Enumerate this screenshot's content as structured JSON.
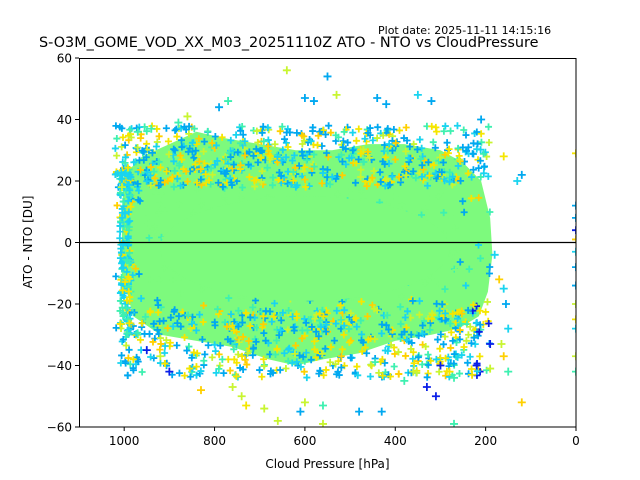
{
  "header": {
    "plot_date": "Plot date: 2025-11-11 14:15:16",
    "title": "S-O3M_GOME_VOD_XX_M03_20251110Z ATO - NTO vs CloudPressure"
  },
  "chart_data": {
    "type": "scatter",
    "title": "S-O3M_GOME_VOD_XX_M03_20251110Z ATO - NTO vs CloudPressure",
    "xlabel": "Cloud Pressure [hPa]",
    "ylabel": "ATO - NTO [DU]",
    "xlim": [
      1100,
      0
    ],
    "ylim": [
      -60,
      60
    ],
    "x_inverted": true,
    "xticks": [
      1000,
      800,
      600,
      400,
      200,
      0
    ],
    "xtick_labels": [
      "1000",
      "800",
      "600",
      "400",
      "200",
      "0"
    ],
    "yticks": [
      60,
      40,
      20,
      0,
      -20,
      -40,
      -60
    ],
    "ytick_labels": [
      "60",
      "40",
      "20",
      "0",
      "−20",
      "−40",
      "−60"
    ],
    "reference_line_y": 0,
    "marker": "+",
    "grid": false,
    "colors": {
      "green": "#7dfa7d",
      "teal": "#3ef0b0",
      "cyan": "#19d4f0",
      "blue": "#00a8f0",
      "dark_blue": "#0a1fe8",
      "yellow": "#f5e600",
      "gold": "#ffd000",
      "lime": "#c8f530"
    },
    "dense_region": {
      "x_range": [
        1000,
        190
      ],
      "y_range": [
        -30,
        30
      ],
      "dominant_color": "green"
    },
    "points": [
      {
        "x": 640,
        "y": 56,
        "c": "lime"
      },
      {
        "x": 550,
        "y": 54,
        "c": "blue"
      },
      {
        "x": 600,
        "y": 47,
        "c": "blue"
      },
      {
        "x": 580,
        "y": 46,
        "c": "blue"
      },
      {
        "x": 530,
        "y": 48,
        "c": "lime"
      },
      {
        "x": 440,
        "y": 47,
        "c": "blue"
      },
      {
        "x": 420,
        "y": 45,
        "c": "blue"
      },
      {
        "x": 350,
        "y": 48,
        "c": "cyan"
      },
      {
        "x": 320,
        "y": 46,
        "c": "blue"
      },
      {
        "x": 770,
        "y": 46,
        "c": "teal"
      },
      {
        "x": 790,
        "y": 44,
        "c": "blue"
      },
      {
        "x": 860,
        "y": 41,
        "c": "lime"
      },
      {
        "x": 880,
        "y": 39,
        "c": "teal"
      },
      {
        "x": 940,
        "y": 37,
        "c": "teal"
      },
      {
        "x": 970,
        "y": 36,
        "c": "teal"
      },
      {
        "x": 210,
        "y": 40,
        "c": "blue"
      },
      {
        "x": 160,
        "y": 28,
        "c": "yellow"
      },
      {
        "x": 120,
        "y": 22,
        "c": "blue"
      },
      {
        "x": 130,
        "y": 20,
        "c": "cyan"
      },
      {
        "x": 1005,
        "y": 18,
        "c": "lime"
      },
      {
        "x": 0,
        "y": 29,
        "c": "yellow"
      },
      {
        "x": 0,
        "y": 12,
        "c": "blue"
      },
      {
        "x": 0,
        "y": 8,
        "c": "blue"
      },
      {
        "x": 0,
        "y": 4,
        "c": "dark_blue"
      },
      {
        "x": 0,
        "y": 1,
        "c": "gold"
      },
      {
        "x": 0,
        "y": -3,
        "c": "cyan"
      },
      {
        "x": 0,
        "y": -8,
        "c": "blue"
      },
      {
        "x": 0,
        "y": -14,
        "c": "blue"
      },
      {
        "x": 0,
        "y": -20,
        "c": "lime"
      },
      {
        "x": 0,
        "y": -25,
        "c": "yellow"
      },
      {
        "x": 0,
        "y": -28,
        "c": "cyan"
      },
      {
        "x": 0,
        "y": -37,
        "c": "lime"
      },
      {
        "x": 0,
        "y": -42,
        "c": "teal"
      },
      {
        "x": 180,
        "y": -4,
        "c": "cyan"
      },
      {
        "x": 170,
        "y": -12,
        "c": "gold"
      },
      {
        "x": 160,
        "y": -15,
        "c": "cyan"
      },
      {
        "x": 155,
        "y": -20,
        "c": "blue"
      },
      {
        "x": 150,
        "y": -28,
        "c": "cyan"
      },
      {
        "x": 165,
        "y": -33,
        "c": "lime"
      },
      {
        "x": 190,
        "y": -33,
        "c": "dark_blue"
      },
      {
        "x": 160,
        "y": -37,
        "c": "gold"
      },
      {
        "x": 150,
        "y": -42,
        "c": "teal"
      },
      {
        "x": 190,
        "y": -41,
        "c": "lime"
      },
      {
        "x": 230,
        "y": -43,
        "c": "yellow"
      },
      {
        "x": 220,
        "y": -40,
        "c": "dark_blue"
      },
      {
        "x": 120,
        "y": -52,
        "c": "gold"
      },
      {
        "x": 270,
        "y": -44,
        "c": "teal"
      },
      {
        "x": 280,
        "y": -42,
        "c": "yellow"
      },
      {
        "x": 310,
        "y": -50,
        "c": "dark_blue"
      },
      {
        "x": 330,
        "y": -47,
        "c": "dark_blue"
      },
      {
        "x": 300,
        "y": -40,
        "c": "dark_blue"
      },
      {
        "x": 380,
        "y": -45,
        "c": "teal"
      },
      {
        "x": 360,
        "y": -42,
        "c": "lime"
      },
      {
        "x": 430,
        "y": -55,
        "c": "blue"
      },
      {
        "x": 480,
        "y": -55,
        "c": "blue"
      },
      {
        "x": 560,
        "y": -53,
        "c": "teal"
      },
      {
        "x": 600,
        "y": -52,
        "c": "lime"
      },
      {
        "x": 610,
        "y": -55,
        "c": "blue"
      },
      {
        "x": 690,
        "y": -54,
        "c": "lime"
      },
      {
        "x": 730,
        "y": -53,
        "c": "yellow"
      },
      {
        "x": 740,
        "y": -50,
        "c": "lime"
      },
      {
        "x": 760,
        "y": -47,
        "c": "lime"
      },
      {
        "x": 830,
        "y": -48,
        "c": "gold"
      },
      {
        "x": 900,
        "y": -42,
        "c": "dark_blue"
      },
      {
        "x": 920,
        "y": -37,
        "c": "lime"
      },
      {
        "x": 950,
        "y": -35,
        "c": "dark_blue"
      },
      {
        "x": 660,
        "y": -58,
        "c": "lime"
      },
      {
        "x": 560,
        "y": -59,
        "c": "lime"
      },
      {
        "x": 270,
        "y": -59,
        "c": "teal"
      }
    ]
  }
}
